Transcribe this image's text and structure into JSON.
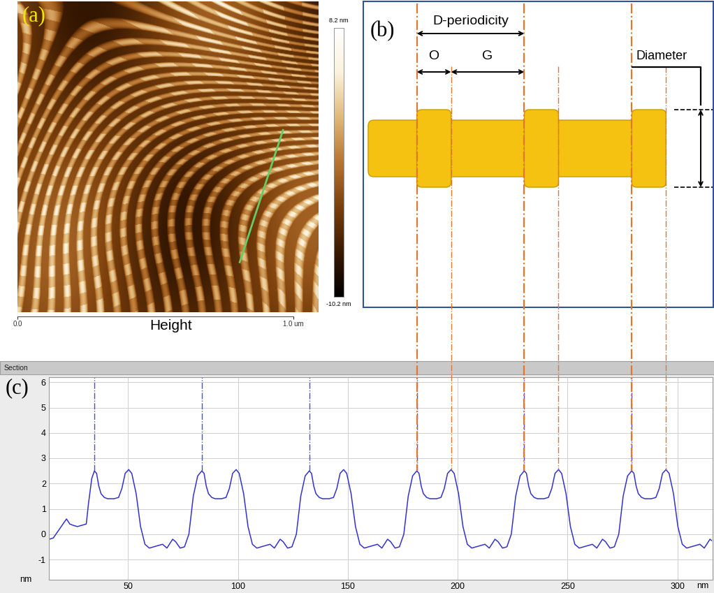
{
  "panel_a": {
    "label": "(a)",
    "label_color": "#f2e600",
    "caption": "Height",
    "xlim": [
      0,
      1.0
    ],
    "ylim": [
      0,
      1.0
    ],
    "xticks": [
      {
        "value": 0.0,
        "label": "0.0"
      },
      {
        "value": 1.0,
        "label": "1.0 um"
      }
    ],
    "colorbar": {
      "range": [
        -10.2,
        8.2
      ],
      "ticks": [
        {
          "value": 8.2,
          "label": "8.2 nm"
        },
        {
          "value": -10.2,
          "label": "-10.2 nm"
        }
      ]
    },
    "section_line": {
      "color": "#66cc66",
      "points": [
        [
          0.884,
          0.586
        ],
        [
          0.74,
          0.161
        ]
      ]
    }
  },
  "panel_b": {
    "label": "(b)",
    "color": "#f5c211",
    "texts": {
      "period": "D-periodicity",
      "overlap": "O",
      "gap": "G",
      "diameter": "Diameter"
    }
  },
  "chart_data": {
    "type": "line",
    "title": "Section",
    "panel_label": "(c)",
    "x_label": "nm",
    "y_label": "nm",
    "xlim": [
      14,
      316
    ],
    "ylim": [
      -1.8,
      6.2
    ],
    "xticks": [
      50,
      100,
      150,
      200,
      250,
      300
    ],
    "yticks": [
      -1,
      0,
      1,
      2,
      3,
      4,
      5,
      6
    ],
    "grid": true,
    "color": "#3333cc",
    "line_style": "solid",
    "x": [
      14.2,
      16,
      18,
      20,
      22,
      23.5,
      25,
      27,
      29,
      31,
      32,
      33.5,
      34.7,
      35.7,
      36.7,
      37.7,
      39.2,
      40.7,
      43.7,
      45.7,
      47.2,
      48.7,
      50.3,
      51.7,
      53.7,
      55.7,
      57.7,
      59.7,
      61.7,
      63.7,
      65.7,
      67.7,
      70.3,
      71.7,
      73.7,
      75.7,
      77.7,
      79.7,
      81.7,
      83.6,
      84.6,
      85.6,
      86.6,
      88.1,
      89.6,
      92.6,
      94.6,
      96.1,
      97.6,
      99.2,
      100.6,
      102.6,
      104.6,
      106.6,
      108.6,
      110.6,
      112.6,
      114.6,
      116.6,
      119.2,
      120.6,
      122.6,
      124.6,
      126.6,
      128.6,
      130.6,
      132.5,
      133.5,
      134.5,
      135.5,
      137.0,
      138.5,
      141.5,
      143.5,
      145.0,
      146.5,
      148.1,
      149.5,
      151.5,
      153.5,
      155.5,
      157.5,
      159.5,
      161.5,
      163.5,
      165.5,
      168.1,
      169.5,
      171.5,
      173.5,
      175.5,
      177.5,
      179.5,
      181.4,
      182.4,
      183.4,
      184.4,
      185.9,
      187.4,
      190.4,
      192.4,
      193.9,
      195.4,
      197.0,
      198.4,
      200.4,
      202.4,
      204.4,
      206.4,
      208.4,
      210.4,
      212.4,
      214.4,
      217.0,
      218.4,
      220.4,
      222.4,
      224.4,
      226.4,
      228.4,
      230.3,
      231.3,
      232.3,
      233.3,
      234.8,
      236.3,
      239.3,
      241.3,
      242.8,
      244.3,
      245.9,
      247.3,
      249.3,
      251.3,
      253.3,
      255.3,
      257.3,
      259.3,
      261.3,
      263.3,
      265.9,
      267.3,
      269.3,
      271.3,
      273.3,
      275.3,
      277.3,
      279.2,
      280.2,
      281.2,
      282.2,
      283.7,
      285.2,
      288.2,
      290.2,
      291.7,
      293.2,
      294.8,
      296.2,
      298.2,
      300.2,
      302.2,
      304.2,
      306.2,
      308.2,
      310.2,
      312.2,
      314.8,
      315.5
    ],
    "values": [
      -0.2,
      -0.15,
      0.1,
      0.35,
      0.6,
      0.4,
      0.35,
      0.3,
      0.35,
      0.4,
      1.2,
      2.2,
      2.5,
      2.4,
      1.9,
      1.6,
      1.45,
      1.4,
      1.4,
      1.45,
      1.8,
      2.4,
      2.55,
      2.4,
      1.6,
      0.3,
      -0.4,
      -0.55,
      -0.5,
      -0.45,
      -0.4,
      -0.55,
      -0.2,
      -0.3,
      -0.55,
      -0.5,
      0.0,
      1.5,
      2.3,
      2.5,
      2.4,
      1.9,
      1.6,
      1.45,
      1.4,
      1.4,
      1.45,
      1.8,
      2.4,
      2.55,
      2.4,
      1.6,
      0.3,
      -0.4,
      -0.55,
      -0.5,
      -0.45,
      -0.4,
      -0.55,
      -0.2,
      -0.3,
      -0.55,
      -0.5,
      0.0,
      1.5,
      2.3,
      2.5,
      2.4,
      1.9,
      1.6,
      1.45,
      1.4,
      1.4,
      1.45,
      1.8,
      2.4,
      2.55,
      2.4,
      1.6,
      0.3,
      -0.4,
      -0.55,
      -0.5,
      -0.45,
      -0.4,
      -0.55,
      -0.2,
      -0.3,
      -0.55,
      -0.5,
      0.0,
      1.5,
      2.3,
      2.5,
      2.4,
      1.9,
      1.6,
      1.45,
      1.4,
      1.4,
      1.45,
      1.8,
      2.4,
      2.55,
      2.4,
      1.6,
      0.3,
      -0.4,
      -0.55,
      -0.5,
      -0.45,
      -0.4,
      -0.55,
      -0.2,
      -0.3,
      -0.55,
      -0.5,
      0.0,
      1.5,
      2.3,
      2.5,
      2.4,
      1.9,
      1.6,
      1.45,
      1.4,
      1.4,
      1.45,
      1.8,
      2.4,
      2.55,
      2.4,
      1.6,
      0.3,
      -0.4,
      -0.55,
      -0.5,
      -0.45,
      -0.4,
      -0.55,
      -0.2,
      -0.3,
      -0.55,
      -0.5,
      0.0,
      1.5,
      2.3,
      2.5,
      2.4,
      1.9,
      1.6,
      1.45,
      1.4,
      1.4,
      1.45,
      1.8,
      2.4,
      2.55,
      2.4,
      1.6,
      0.3,
      -0.4,
      -0.55,
      -0.5,
      -0.45,
      -0.4,
      -0.55,
      -0.2,
      -0.25
    ],
    "peak_lines": {
      "x": [
        34.7,
        83.6,
        132.5,
        181.4,
        230.3,
        279.2
      ],
      "color": "#4b4bdc",
      "line_style": "dashdot"
    },
    "period_lines": {
      "x": [
        181.4,
        197.0,
        230.3,
        245.9,
        279.2,
        294.8
      ],
      "color": "#e07830",
      "line_style": "dashdot"
    }
  }
}
